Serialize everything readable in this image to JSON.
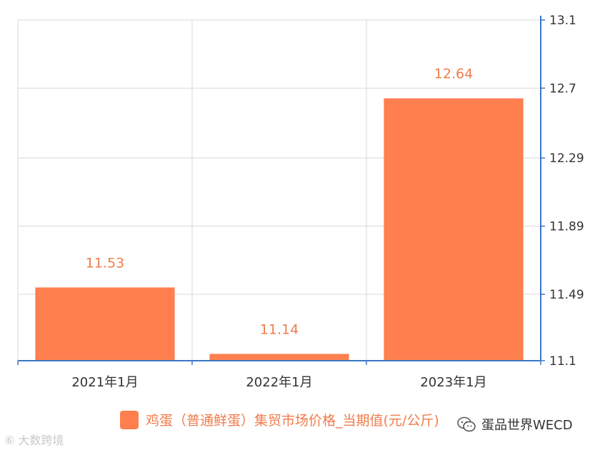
{
  "chart_data": {
    "type": "bar",
    "categories": [
      "2021年1月",
      "2022年1月",
      "2023年1月"
    ],
    "series": [
      {
        "name": "鸡蛋（普通鲜蛋）集贸市场价格_当期值(元/公斤)",
        "values": [
          11.53,
          11.14,
          12.64
        ]
      }
    ],
    "ylim": [
      11.1,
      13.1
    ],
    "yticks": [
      "11.1",
      "11.49",
      "11.89",
      "12.29",
      "12.7",
      "13.1"
    ],
    "y_axis_side": "right",
    "grid": true,
    "legend_position": "bottom",
    "bar_color": "#ff7f4f",
    "label_color": "#f07c4c",
    "axis_color": "#3a78c6"
  },
  "legend": {
    "label": "鸡蛋（普通鲜蛋）集贸市场价格_当期值(元/公斤)"
  },
  "watermarks": {
    "left": "⑥ 大数跨境",
    "right": "蛋品世界WECD"
  }
}
